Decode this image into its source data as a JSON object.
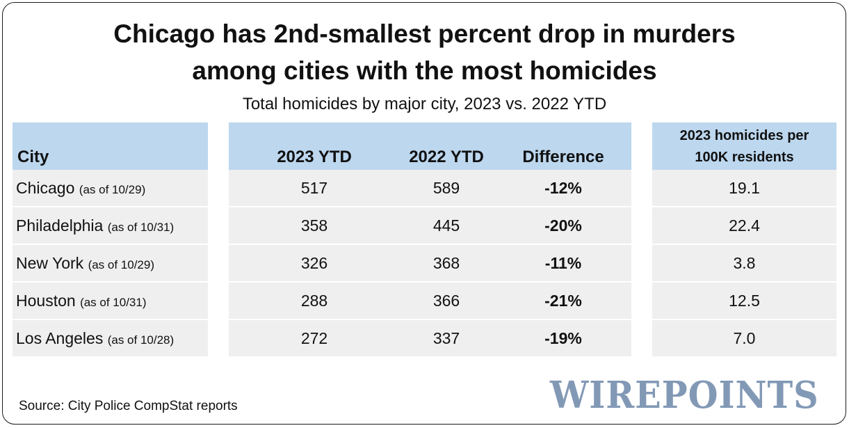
{
  "chart_data": {
    "type": "table",
    "title_lines": [
      "Chicago has 2nd-smallest percent drop in murders",
      "among cities with the most homicides"
    ],
    "subtitle": "Total homicides by major city, 2023 vs. 2022 YTD",
    "columns": {
      "city": "City",
      "ytd2023": "2023 YTD",
      "ytd2022": "2022 YTD",
      "difference": "Difference",
      "rate_line1": "2023 homicides per",
      "rate_line2": "100K residents"
    },
    "rows": [
      {
        "city": "Chicago",
        "as_of": "(as of 10/29)",
        "ytd2023": "517",
        "ytd2022": "589",
        "difference": "-12%",
        "rate": "19.1"
      },
      {
        "city": "Philadelphia",
        "as_of": "(as of 10/31)",
        "ytd2023": "358",
        "ytd2022": "445",
        "difference": "-20%",
        "rate": "22.4"
      },
      {
        "city": "New York",
        "as_of": "(as of 10/29)",
        "ytd2023": "326",
        "ytd2022": "368",
        "difference": "-11%",
        "rate": "3.8"
      },
      {
        "city": "Houston",
        "as_of": "(as of 10/31)",
        "ytd2023": "288",
        "ytd2022": "366",
        "difference": "-21%",
        "rate": "12.5"
      },
      {
        "city": "Los Angeles",
        "as_of": "(as of 10/28)",
        "ytd2023": "272",
        "ytd2022": "337",
        "difference": "-19%",
        "rate": "7.0"
      }
    ],
    "source": "Source: City Police CompStat reports",
    "logo_text": "WIREPOINTS"
  },
  "colors": {
    "header_fill": "#bcd7ee",
    "row_fill": "#efefef",
    "logo": "#8299b6"
  }
}
